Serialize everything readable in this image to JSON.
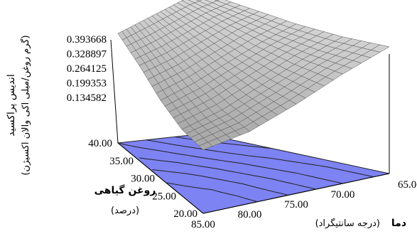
{
  "chart_data": {
    "type": "surface3d",
    "z_axis": {
      "label": "اندیس پراکسید",
      "unit": "(گرم روغن/میلی اکی والان اکسیژن)",
      "ticks": [
        "0.134582",
        "0.199353",
        "0.264125",
        "0.328897",
        "0.393668"
      ],
      "range": [
        0.134582,
        0.393668
      ]
    },
    "x_axis": {
      "label": "دما",
      "unit": "(درجه سانتیگراد)",
      "ticks": [
        "65.00",
        "70.00",
        "75.00",
        "80.00",
        "85.00"
      ],
      "range": [
        65,
        85
      ]
    },
    "y_axis": {
      "label": "روغن گیاهی",
      "unit": "(درصد)",
      "ticks": [
        "20.00",
        "25.00",
        "30.00",
        "35.00",
        "40.00"
      ],
      "range": [
        20,
        40
      ]
    },
    "surface": {
      "description_values_note": "peroxide index over temperature x vegetable oil grid",
      "grid_x": [
        65,
        70,
        75,
        80,
        85
      ],
      "grid_y": [
        20,
        25,
        30,
        35,
        40
      ],
      "z_values": [
        [
          0.39,
          0.37,
          0.34,
          0.31,
          0.28
        ],
        [
          0.37,
          0.34,
          0.3,
          0.26,
          0.23
        ],
        [
          0.35,
          0.31,
          0.26,
          0.21,
          0.17
        ],
        [
          0.34,
          0.29,
          0.23,
          0.17,
          0.13
        ],
        [
          0.34,
          0.28,
          0.21,
          0.15,
          0.12
        ]
      ]
    },
    "colors": {
      "surface_fill": "#bfbfbf",
      "surface_grid": "#555555",
      "contour_plane": "#7d83f2",
      "contour_lines": "#222222"
    }
  }
}
